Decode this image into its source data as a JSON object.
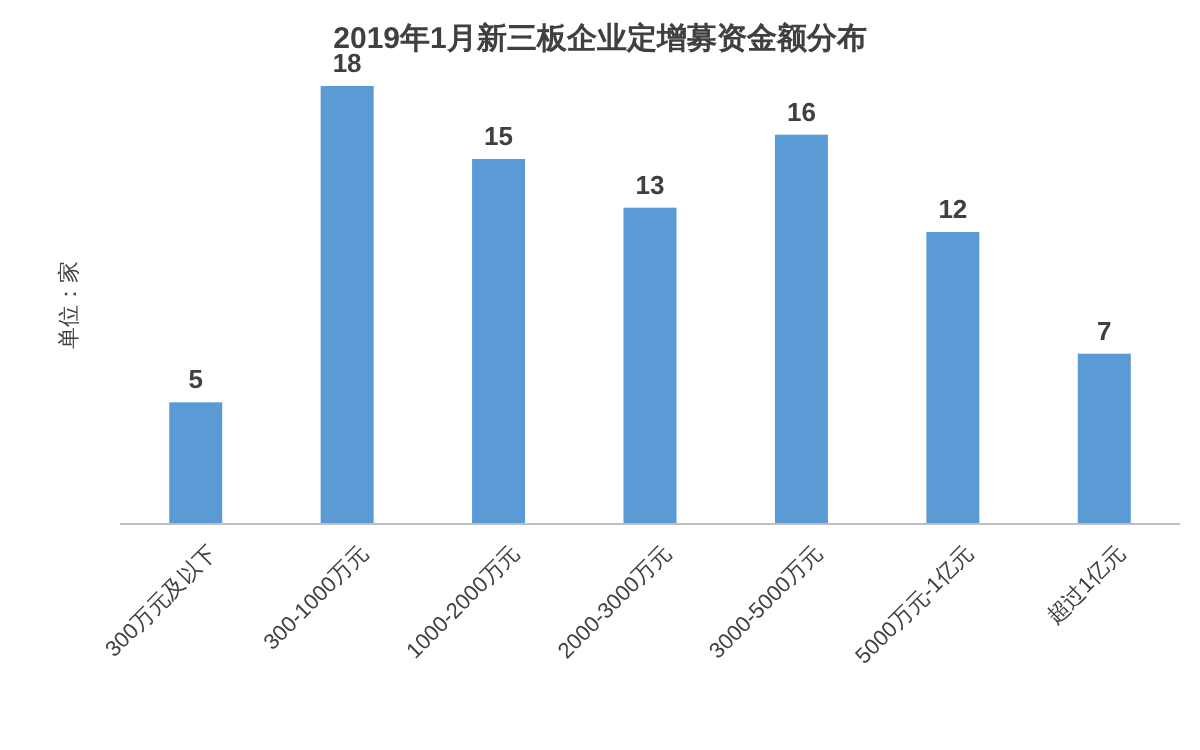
{
  "chart_data": {
    "type": "bar",
    "title": "2019年1月新三板企业定增募资金额分布",
    "ylabel": "单位：家",
    "categories": [
      "300万元及以下",
      "300-1000万元",
      "1000-2000万元",
      "2000-3000万元",
      "3000-5000万元",
      "5000万元-1亿元",
      "超过1亿元"
    ],
    "values": [
      5,
      18,
      15,
      13,
      16,
      12,
      7
    ],
    "color": "#5b9bd5",
    "data_labels": true
  }
}
